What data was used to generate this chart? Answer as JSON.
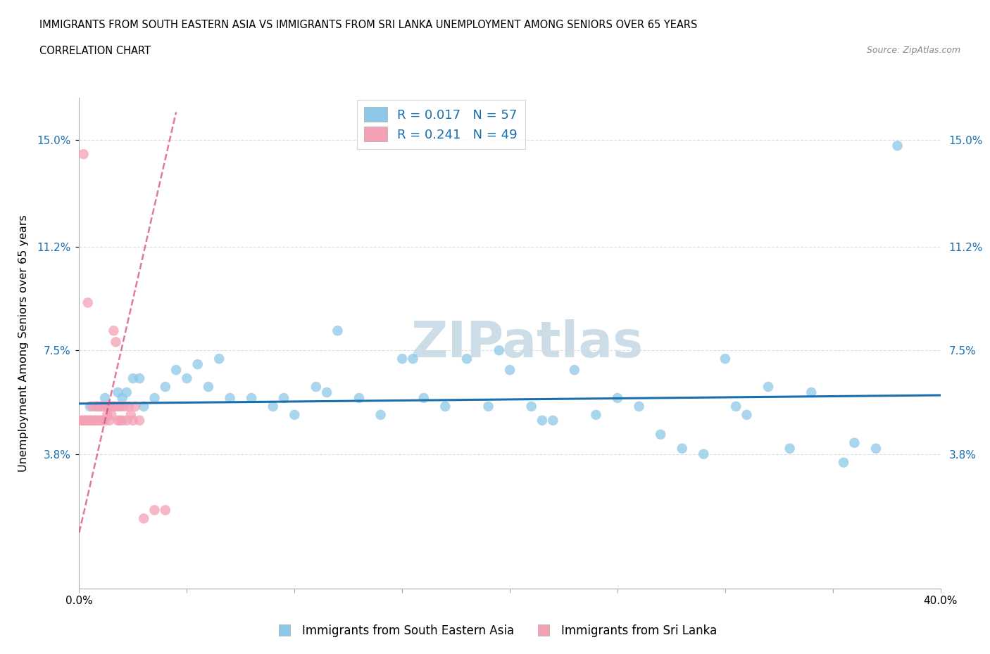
{
  "title_line1": "IMMIGRANTS FROM SOUTH EASTERN ASIA VS IMMIGRANTS FROM SRI LANKA UNEMPLOYMENT AMONG SENIORS OVER 65 YEARS",
  "title_line2": "CORRELATION CHART",
  "source": "Source: ZipAtlas.com",
  "ylabel": "Unemployment Among Seniors over 65 years",
  "yticks": [
    3.8,
    7.5,
    11.2,
    15.0
  ],
  "ytick_labels": [
    "3.8%",
    "7.5%",
    "11.2%",
    "15.0%"
  ],
  "xlim": [
    0.0,
    40.0
  ],
  "ylim": [
    -1.0,
    16.5
  ],
  "color_blue": "#8dc8e8",
  "color_pink": "#f4a0b5",
  "color_blue_line": "#1a6faf",
  "color_pink_line": "#d04080",
  "watermark_color": "#ccdde8",
  "scatter_blue_x": [
    0.5,
    0.8,
    1.0,
    1.2,
    1.4,
    1.6,
    1.8,
    2.0,
    2.2,
    2.5,
    2.8,
    3.0,
    3.5,
    4.0,
    4.5,
    5.0,
    5.5,
    6.0,
    6.5,
    7.0,
    8.0,
    9.0,
    10.0,
    11.0,
    12.0,
    13.0,
    14.0,
    15.0,
    16.0,
    17.0,
    18.0,
    19.0,
    20.0,
    21.0,
    22.0,
    24.0,
    25.0,
    26.0,
    27.0,
    28.0,
    29.0,
    30.0,
    31.0,
    32.0,
    33.0,
    34.0,
    35.5,
    36.0,
    37.0,
    38.0,
    19.5,
    23.0,
    15.5,
    9.5,
    11.5,
    21.5,
    30.5
  ],
  "scatter_blue_y": [
    5.5,
    5.5,
    5.5,
    5.8,
    5.5,
    5.5,
    6.0,
    5.8,
    6.0,
    6.5,
    6.5,
    5.5,
    5.8,
    6.2,
    6.8,
    6.5,
    7.0,
    6.2,
    7.2,
    5.8,
    5.8,
    5.5,
    5.2,
    6.2,
    8.2,
    5.8,
    5.2,
    7.2,
    5.8,
    5.5,
    7.2,
    5.5,
    6.8,
    5.5,
    5.0,
    5.2,
    5.8,
    5.5,
    4.5,
    4.0,
    3.8,
    7.2,
    5.2,
    6.2,
    4.0,
    6.0,
    3.5,
    4.2,
    4.0,
    14.8,
    7.5,
    6.8,
    7.2,
    5.8,
    6.0,
    5.0,
    5.5
  ],
  "scatter_pink_x": [
    0.1,
    0.15,
    0.2,
    0.25,
    0.3,
    0.35,
    0.4,
    0.45,
    0.5,
    0.55,
    0.6,
    0.65,
    0.7,
    0.75,
    0.8,
    0.85,
    0.9,
    0.95,
    1.0,
    1.05,
    1.1,
    1.15,
    1.2,
    1.25,
    1.3,
    1.35,
    1.4,
    1.45,
    1.5,
    1.55,
    1.6,
    1.65,
    1.7,
    1.75,
    1.8,
    1.85,
    1.9,
    1.95,
    2.0,
    2.1,
    2.2,
    2.3,
    2.4,
    2.5,
    2.6,
    2.8,
    3.0,
    3.5,
    4.0
  ],
  "scatter_pink_y": [
    5.0,
    5.0,
    14.5,
    5.0,
    5.0,
    5.0,
    9.2,
    5.0,
    5.0,
    5.0,
    5.5,
    5.0,
    5.0,
    5.5,
    5.0,
    5.5,
    5.0,
    5.5,
    5.0,
    5.5,
    5.0,
    5.5,
    5.0,
    5.5,
    5.2,
    5.5,
    5.0,
    5.5,
    5.2,
    5.5,
    8.2,
    5.5,
    7.8,
    5.5,
    5.0,
    5.5,
    5.0,
    5.5,
    5.0,
    5.5,
    5.0,
    5.5,
    5.2,
    5.0,
    5.5,
    5.0,
    1.5,
    1.8,
    1.8
  ],
  "pink_regression_x0": 0.0,
  "pink_regression_x1": 4.5,
  "pink_regression_y0": 1.0,
  "pink_regression_y1": 16.0,
  "blue_regression_x0": 0.0,
  "blue_regression_x1": 40.0,
  "blue_regression_y0": 5.6,
  "blue_regression_y1": 5.9
}
